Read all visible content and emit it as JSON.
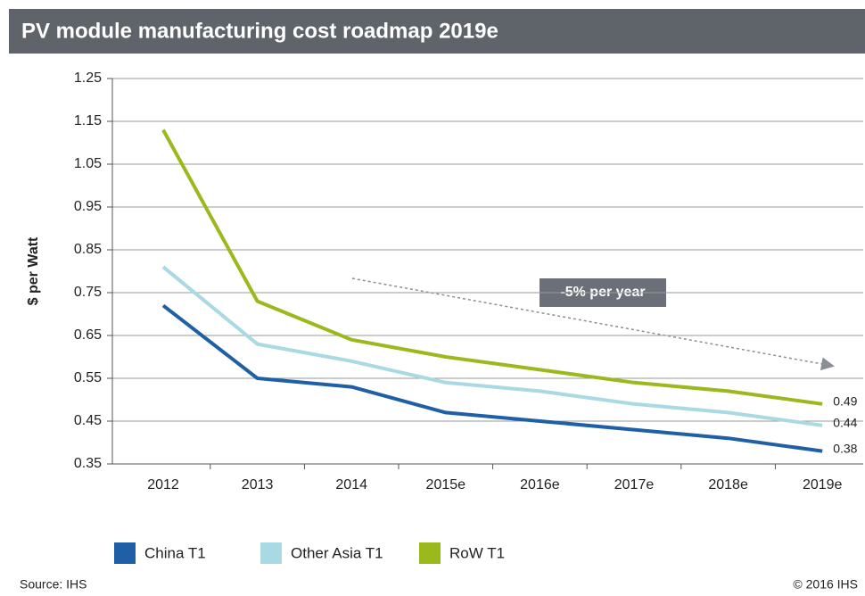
{
  "chart_data": {
    "type": "line",
    "title": "PV module manufacturing cost roadmap 2019e",
    "y_label": "$ per Watt",
    "annotation": "-5% per year",
    "source": "Source: IHS",
    "copyright": "© 2016 IHS",
    "categories": [
      "2012",
      "2013",
      "2014",
      "2015e",
      "2016e",
      "2017e",
      "2018e",
      "2019e"
    ],
    "series": [
      {
        "name": "China T1",
        "color": "#1f5fa6",
        "values": [
          0.72,
          0.55,
          0.53,
          0.47,
          0.45,
          0.43,
          0.41,
          0.38
        ]
      },
      {
        "name": "Other Asia T1",
        "color": "#a9d9e3",
        "values": [
          0.81,
          0.63,
          0.59,
          0.54,
          0.52,
          0.49,
          0.47,
          0.44
        ]
      },
      {
        "name": "RoW T1",
        "color": "#9bb81d",
        "values": [
          1.13,
          0.73,
          0.64,
          0.6,
          0.57,
          0.54,
          0.52,
          0.49
        ]
      }
    ],
    "ylim": [
      0.35,
      1.25
    ],
    "yticks": [
      0.35,
      0.45,
      0.55,
      0.65,
      0.75,
      0.85,
      0.95,
      1.05,
      1.15,
      1.25
    ],
    "grid": true
  }
}
